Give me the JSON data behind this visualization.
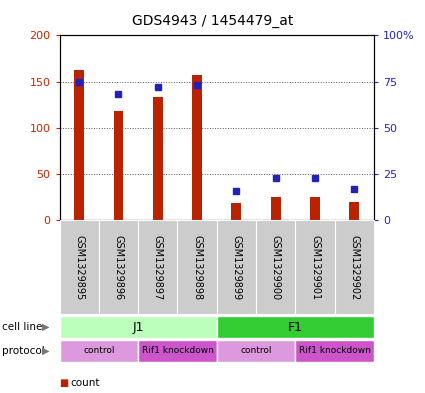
{
  "title": "GDS4943 / 1454479_at",
  "samples": [
    "GSM1329895",
    "GSM1329896",
    "GSM1329897",
    "GSM1329898",
    "GSM1329899",
    "GSM1329900",
    "GSM1329901",
    "GSM1329902"
  ],
  "counts": [
    163,
    118,
    133,
    157,
    18,
    25,
    25,
    20
  ],
  "percentiles": [
    75,
    68,
    72,
    73,
    16,
    23,
    23,
    17
  ],
  "ylim_left": [
    0,
    200
  ],
  "ylim_right": [
    0,
    100
  ],
  "yticks_left": [
    0,
    50,
    100,
    150,
    200
  ],
  "yticks_right": [
    0,
    25,
    50,
    75,
    100
  ],
  "ytick_labels_left": [
    "0",
    "50",
    "100",
    "150",
    "200"
  ],
  "ytick_labels_right": [
    "0",
    "25",
    "50",
    "75",
    "100%"
  ],
  "bar_color": "#bb2200",
  "dot_color": "#2222bb",
  "cell_line_groups": [
    {
      "label": "J1",
      "start": 0,
      "end": 4,
      "color": "#bbffbb"
    },
    {
      "label": "F1",
      "start": 4,
      "end": 8,
      "color": "#33cc33"
    }
  ],
  "protocol_groups": [
    {
      "label": "control",
      "start": 0,
      "end": 2,
      "color": "#dd99dd"
    },
    {
      "label": "Rif1 knockdown",
      "start": 2,
      "end": 4,
      "color": "#cc55cc"
    },
    {
      "label": "control",
      "start": 4,
      "end": 6,
      "color": "#dd99dd"
    },
    {
      "label": "Rif1 knockdown",
      "start": 6,
      "end": 8,
      "color": "#cc55cc"
    }
  ],
  "grid_color": "#555555",
  "tick_label_color_left": "#cc2200",
  "tick_label_color_right": "#2222cc",
  "bg_color": "#ffffff",
  "plot_bg": "#ffffff",
  "bar_width": 0.25,
  "legend_count_color": "#bb2200",
  "legend_pct_color": "#2222bb",
  "sample_box_color": "#cccccc"
}
